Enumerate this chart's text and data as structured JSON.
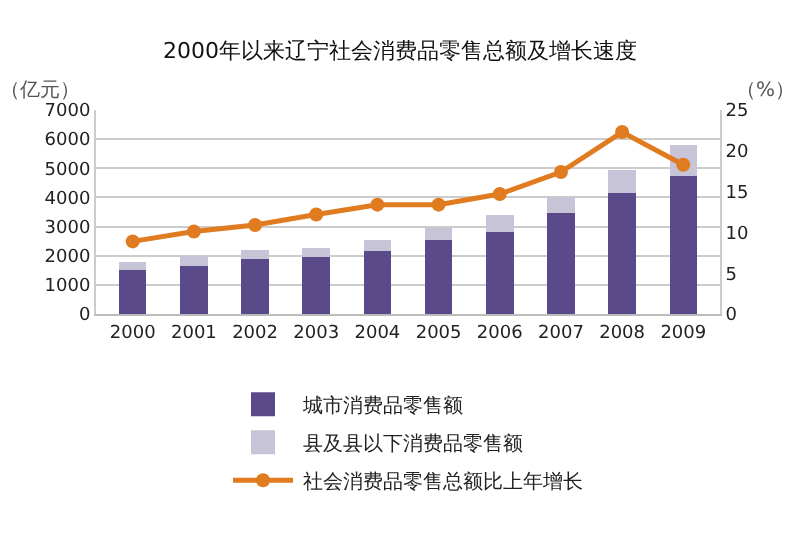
{
  "chart_data": {
    "type": "bar",
    "title": "2000年以来辽宁社会消费品零售总额及增长速度",
    "ylabel": "（亿元）",
    "y2label": "（%）",
    "categories": [
      "2000",
      "2001",
      "2002",
      "2003",
      "2004",
      "2005",
      "2006",
      "2007",
      "2008",
      "2009"
    ],
    "stacked": true,
    "series": [
      {
        "name": "城市消费品零售额",
        "color": "#5b4a8a",
        "values": [
          1500,
          1650,
          1900,
          1950,
          2150,
          2550,
          2820,
          3460,
          4150,
          4720
        ]
      },
      {
        "name": "县及县以下消费品零售额",
        "color": "#c8c4d8",
        "values": [
          300,
          330,
          300,
          330,
          400,
          410,
          580,
          570,
          790,
          1090
        ]
      },
      {
        "name": "社会消费品零售总额比上年增长",
        "type": "line",
        "axis": "y2",
        "color": "#e07b20",
        "marker": "circle",
        "values": [
          8.9,
          10.1,
          10.9,
          12.2,
          13.4,
          13.4,
          14.7,
          17.4,
          22.3,
          18.3
        ]
      }
    ],
    "ylim": [
      0,
      7000
    ],
    "yticks": [
      0,
      1000,
      2000,
      3000,
      4000,
      5000,
      6000,
      7000
    ],
    "y2lim": [
      0,
      25
    ],
    "y2ticks": [
      0,
      5,
      10,
      15,
      20,
      25
    ],
    "grid": "y",
    "legend": "bottom"
  }
}
